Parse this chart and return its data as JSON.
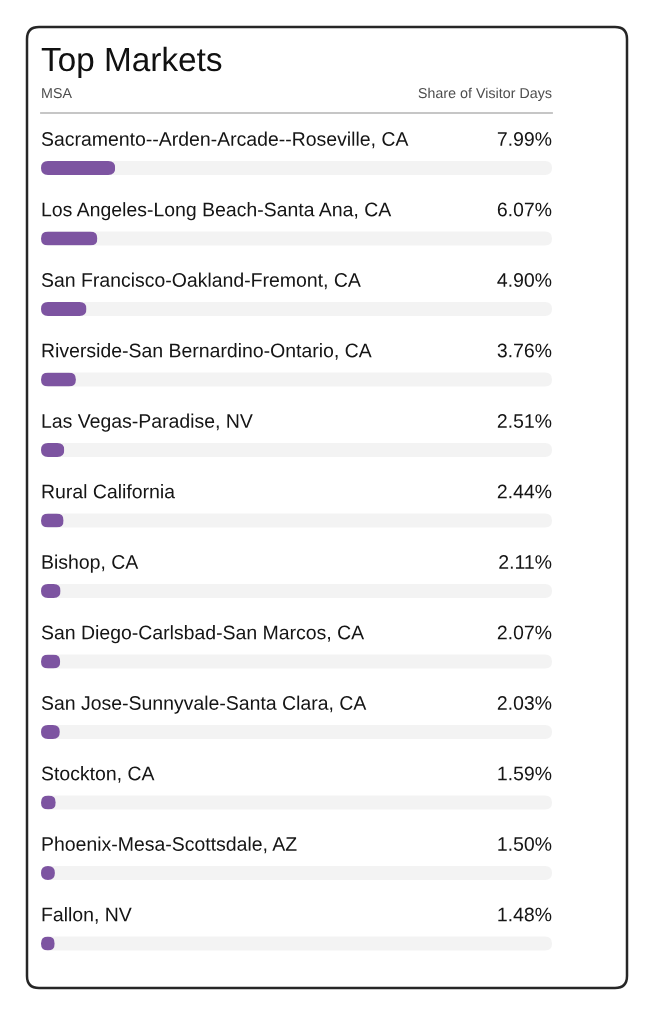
{
  "chart_data": {
    "type": "bar",
    "orientation": "horizontal",
    "title": "Top Markets",
    "xlabel": "Share of Visitor Days",
    "ylabel": "MSA",
    "categories": [
      "Sacramento--Arden-Arcade--Roseville, CA",
      "Los Angeles-Long Beach-Santa Ana, CA",
      "San Francisco-Oakland-Fremont, CA",
      "Riverside-San Bernardino-Ontario, CA",
      "Las Vegas-Paradise, NV",
      "Rural California",
      "Bishop, CA",
      "San Diego-Carlsbad-San Marcos, CA",
      "San Jose-Sunnyvale-Santa Clara, CA",
      "Stockton, CA",
      "Phoenix-Mesa-Scottsdale, AZ",
      "Fallon, NV"
    ],
    "values": [
      7.99,
      6.07,
      4.9,
      3.76,
      2.51,
      2.44,
      2.11,
      2.07,
      2.03,
      1.59,
      1.5,
      1.48
    ],
    "value_labels": [
      "7.99%",
      "6.07%",
      "4.90%",
      "3.76%",
      "2.51%",
      "2.44%",
      "2.11%",
      "2.07%",
      "2.03%",
      "1.59%",
      "1.50%",
      "1.48%"
    ],
    "color": "#7e47ae",
    "xlim": [
      0,
      55
    ],
    "tick_labels": "y"
  }
}
